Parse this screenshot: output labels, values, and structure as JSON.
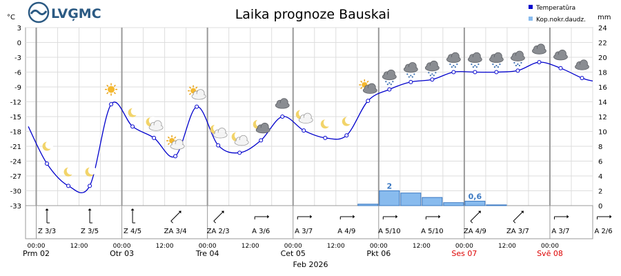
{
  "logo": {
    "text": "LVĢMC"
  },
  "chart_data": {
    "type": "line",
    "title": "Laika prognoze Bauskai",
    "left_unit": "°C",
    "right_unit": "mm",
    "legend": [
      {
        "name": "Temperatūra",
        "color": "#0000cc"
      },
      {
        "name": "Kop.nokr.daudz.",
        "color": "#88bbee"
      }
    ],
    "temp_axis": {
      "min": -33,
      "max": 3,
      "ticks": [
        3,
        0,
        -3,
        -6,
        -9,
        -12,
        -15,
        -18,
        -21,
        -24,
        -27,
        -30,
        -33
      ]
    },
    "precip_axis": {
      "min": 0,
      "max": 24,
      "ticks": [
        24,
        22,
        20,
        18,
        16,
        14,
        12,
        10,
        8,
        6,
        4,
        2,
        0
      ]
    },
    "x_range_hours": [
      -3,
      156
    ],
    "temperature": [
      {
        "t": 3,
        "v": -24.5
      },
      {
        "t": 9,
        "v": -29.0
      },
      {
        "t": 15,
        "v": -29.0
      },
      {
        "t": 21,
        "v": -12.5
      },
      {
        "t": 27,
        "v": -17.0
      },
      {
        "t": 33,
        "v": -19.3
      },
      {
        "t": 39,
        "v": -23.0
      },
      {
        "t": 45,
        "v": -13.0
      },
      {
        "t": 51,
        "v": -20.8
      },
      {
        "t": 57,
        "v": -22.3
      },
      {
        "t": 63,
        "v": -19.8
      },
      {
        "t": 69,
        "v": -15.0
      },
      {
        "t": 75,
        "v": -17.8
      },
      {
        "t": 81,
        "v": -19.3
      },
      {
        "t": 87,
        "v": -18.8
      },
      {
        "t": 93,
        "v": -11.8
      },
      {
        "t": 99,
        "v": -9.5
      },
      {
        "t": 105,
        "v": -8.0
      },
      {
        "t": 111,
        "v": -7.5
      },
      {
        "t": 117,
        "v": -6.0
      },
      {
        "t": 123,
        "v": -6.0
      },
      {
        "t": 129,
        "v": -6.0
      },
      {
        "t": 135,
        "v": -5.7
      },
      {
        "t": 141,
        "v": -4.0
      },
      {
        "t": 147,
        "v": -5.2
      },
      {
        "t": 153,
        "v": -7.2
      }
    ],
    "precipitation": [
      {
        "t0": 90,
        "t1": 96,
        "v": 0.2
      },
      {
        "t0": 96,
        "t1": 102,
        "v": 2.0
      },
      {
        "t0": 102,
        "t1": 108,
        "v": 1.7
      },
      {
        "t0": 108,
        "t1": 114,
        "v": 1.1
      },
      {
        "t0": 114,
        "t1": 120,
        "v": 0.4
      },
      {
        "t0": 120,
        "t1": 126,
        "v": 0.6
      },
      {
        "t0": 126,
        "t1": 132,
        "v": 0.1
      }
    ],
    "bar_labels": [
      {
        "t": 99,
        "v": 2.0,
        "text": "2"
      },
      {
        "t": 123,
        "v": 0.6,
        "text": "0,6"
      }
    ],
    "icons": [
      {
        "t": 3,
        "v": -21.0,
        "kind": "moon"
      },
      {
        "t": 9,
        "v": -26.2,
        "kind": "moon"
      },
      {
        "t": 15,
        "v": -26.2,
        "kind": "moon"
      },
      {
        "t": 21,
        "v": -9.5,
        "kind": "sun"
      },
      {
        "t": 27,
        "v": -14.2,
        "kind": "moon"
      },
      {
        "t": 33,
        "v": -16.5,
        "kind": "moon-cloud"
      },
      {
        "t": 39,
        "v": -20.3,
        "kind": "sun-cloud"
      },
      {
        "t": 45,
        "v": -10.2,
        "kind": "sun-cloud"
      },
      {
        "t": 51,
        "v": -18.0,
        "kind": "moon-cloud"
      },
      {
        "t": 57,
        "v": -19.5,
        "kind": "moon-cloud"
      },
      {
        "t": 63,
        "v": -17.0,
        "kind": "moon-cloud-dark"
      },
      {
        "t": 69,
        "v": -12.3,
        "kind": "cloud-dark"
      },
      {
        "t": 75,
        "v": -15.0,
        "kind": "moon-cloud"
      },
      {
        "t": 81,
        "v": -16.5,
        "kind": "moon"
      },
      {
        "t": 87,
        "v": -16.0,
        "kind": "moon"
      },
      {
        "t": 93,
        "v": -9.0,
        "kind": "sun-cloud-dark"
      },
      {
        "t": 99,
        "v": -6.8,
        "kind": "snow"
      },
      {
        "t": 105,
        "v": -5.3,
        "kind": "snow"
      },
      {
        "t": 111,
        "v": -5.0,
        "kind": "snow"
      },
      {
        "t": 117,
        "v": -3.3,
        "kind": "snow"
      },
      {
        "t": 123,
        "v": -3.3,
        "kind": "snow"
      },
      {
        "t": 129,
        "v": -3.3,
        "kind": "snow"
      },
      {
        "t": 135,
        "v": -3.0,
        "kind": "snow"
      },
      {
        "t": 141,
        "v": -1.3,
        "kind": "cloud-dark"
      },
      {
        "t": 147,
        "v": -2.5,
        "kind": "cloud-dark"
      },
      {
        "t": 153,
        "v": -4.5,
        "kind": "cloud-dark"
      }
    ],
    "wind": [
      {
        "t": 3,
        "dir": "Z",
        "speed": "3/3",
        "angle": 180
      },
      {
        "t": 15,
        "dir": "Z",
        "speed": "3/5",
        "angle": 180
      },
      {
        "t": 27,
        "dir": "Z",
        "speed": "4/5",
        "angle": 180
      },
      {
        "t": 39,
        "dir": "ZA",
        "speed": "3/4",
        "angle": 225
      },
      {
        "t": 51,
        "dir": "ZA",
        "speed": "2/3",
        "angle": 225
      },
      {
        "t": 63,
        "dir": "A",
        "speed": "3/6",
        "angle": 270
      },
      {
        "t": 75,
        "dir": "A",
        "speed": "3/7",
        "angle": 270
      },
      {
        "t": 87,
        "dir": "A",
        "speed": "4/9",
        "angle": 270
      },
      {
        "t": 99,
        "dir": "A",
        "speed": "5/10",
        "angle": 270
      },
      {
        "t": 111,
        "dir": "A",
        "speed": "5/10",
        "angle": 270
      },
      {
        "t": 123,
        "dir": "ZA",
        "speed": "4/9",
        "angle": 225
      },
      {
        "t": 135,
        "dir": "ZA",
        "speed": "3/7",
        "angle": 225
      },
      {
        "t": 147,
        "dir": "A",
        "speed": "3/7",
        "angle": 270
      },
      {
        "t": 159,
        "dir": "A",
        "speed": "2/6",
        "angle": 270
      }
    ],
    "time_ticks": [
      {
        "t": 0,
        "label": "00:00"
      },
      {
        "t": 12,
        "label": "12:00"
      },
      {
        "t": 24,
        "label": "00:00"
      },
      {
        "t": 36,
        "label": "12:00"
      },
      {
        "t": 48,
        "label": "00:00"
      },
      {
        "t": 60,
        "label": "12:00"
      },
      {
        "t": 72,
        "label": "00:00"
      },
      {
        "t": 84,
        "label": "12:00"
      },
      {
        "t": 96,
        "label": "00:00"
      },
      {
        "t": 108,
        "label": "12:00"
      },
      {
        "t": 120,
        "label": "00:00"
      },
      {
        "t": 132,
        "label": "12:00"
      },
      {
        "t": 144,
        "label": "00:00"
      }
    ],
    "days": [
      {
        "t": 0,
        "label": "Prm 02",
        "weekend": false
      },
      {
        "t": 24,
        "label": "Otr 03",
        "weekend": false
      },
      {
        "t": 48,
        "label": "Tre 04",
        "weekend": false
      },
      {
        "t": 72,
        "label": "Cet 05",
        "weekend": false
      },
      {
        "t": 96,
        "label": "Pkt 06",
        "weekend": false
      },
      {
        "t": 120,
        "label": "Ses 07",
        "weekend": true
      },
      {
        "t": 144,
        "label": "Svē 08",
        "weekend": true
      }
    ],
    "month_label": "Feb 2026",
    "colors": {
      "temperature": "#0000cc",
      "precip_fill": "#88bbee",
      "precip_stroke": "#3a78c2",
      "grid": "#dddddd",
      "weekend": "#dd0000"
    }
  }
}
